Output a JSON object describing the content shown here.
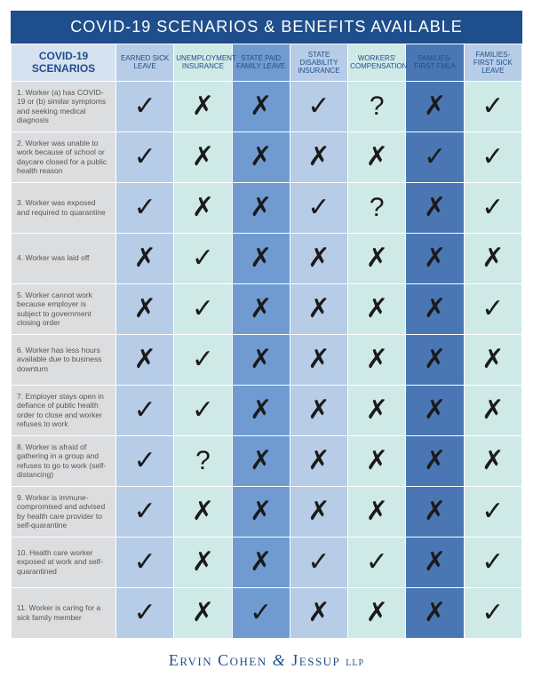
{
  "title": "COVID-19 SCENARIOS & BENEFITS AVAILABLE",
  "scenario_header": "COVID-19 SCENARIOS",
  "header_bg_colors": [
    "#b7cce6",
    "#cfe9e7",
    "#6f9bd1",
    "#b7cce6",
    "#cfe9e7",
    "#4a77b4",
    "#b7cce6"
  ],
  "col_bg_colors": [
    "#b7cce6",
    "#cfe9e7",
    "#6f9bd1",
    "#b7cce6",
    "#cfe9e7",
    "#4a77b4",
    "#cfe9e7"
  ],
  "benefits": [
    "EARNED SICK LEAVE",
    "UNEMPLOYMENT INSURANCE",
    "STATE PAID FAMILY LEAVE",
    "STATE DISABILITY INSURANCE",
    "WORKERS' COMPENSATION",
    "FAMILIES-FIRST FMLA",
    "FAMILIES-FIRST SICK LEAVE"
  ],
  "glyphs": {
    "yes": "✓",
    "no": "✗",
    "maybe": "?"
  },
  "rows": [
    {
      "label": "1. Worker (a) has COVID-19 or (b) similar symptoms and seeking medical diagnosis",
      "values": [
        "yes",
        "no",
        "no",
        "yes",
        "maybe",
        "no",
        "yes"
      ]
    },
    {
      "label": "2. Worker was unable to work because of school or daycare closed for a public health reason",
      "values": [
        "yes",
        "no",
        "no",
        "no",
        "no",
        "yes",
        "yes"
      ]
    },
    {
      "label": "3. Worker was exposed and required to quarantine",
      "values": [
        "yes",
        "no",
        "no",
        "yes",
        "maybe",
        "no",
        "yes"
      ]
    },
    {
      "label": "4. Worker was laid off",
      "values": [
        "no",
        "yes",
        "no",
        "no",
        "no",
        "no",
        "no"
      ]
    },
    {
      "label": "5. Worker cannot work because employer is subject to government closing order",
      "values": [
        "no",
        "yes",
        "no",
        "no",
        "no",
        "no",
        "yes"
      ]
    },
    {
      "label": "6. Worker has less hours available due to business downturn",
      "values": [
        "no",
        "yes",
        "no",
        "no",
        "no",
        "no",
        "no"
      ]
    },
    {
      "label": "7. Employer stays open in defiance of public health order to close and worker refuses to work",
      "values": [
        "yes",
        "yes",
        "no",
        "no",
        "no",
        "no",
        "no"
      ]
    },
    {
      "label": "8. Worker is afraid of gathering in a group and refuses to go to work (self-distancing)",
      "values": [
        "yes",
        "maybe",
        "no",
        "no",
        "no",
        "no",
        "no"
      ]
    },
    {
      "label": "9. Worker is immune-compromised and advised by health care provider to self-quarantine",
      "values": [
        "yes",
        "no",
        "no",
        "no",
        "no",
        "no",
        "yes"
      ]
    },
    {
      "label": "10. Health care worker exposed at work and self-quarantined",
      "values": [
        "yes",
        "no",
        "no",
        "yes",
        "yes",
        "no",
        "yes"
      ]
    },
    {
      "label": "11. Worker is caring for a sick family member",
      "values": [
        "yes",
        "no",
        "yes",
        "no",
        "no",
        "no",
        "yes"
      ]
    }
  ],
  "footer": {
    "part1": "Ervin Cohen",
    "amp": "&",
    "part2": "Jessup",
    "suffix": "LLP"
  }
}
